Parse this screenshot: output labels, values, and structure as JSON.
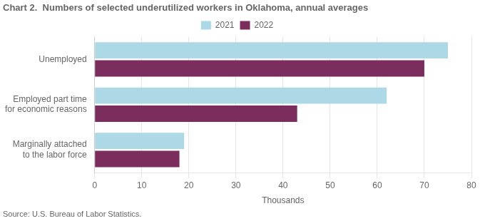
{
  "chart_data": {
    "type": "bar",
    "orientation": "horizontal",
    "title": "Chart 2.  Numbers of selected underutilized workers in Oklahoma, annual averages",
    "annotations": [
      "Source: U.S. Bureau of Labor Statistics."
    ],
    "categories": [
      "Unemployed",
      "Employed part time\nfor economic reasons",
      "Marginally attached\nto the labor force"
    ],
    "series": [
      {
        "name": "2021",
        "color": "#ADD8E6",
        "values": [
          75,
          62,
          19
        ]
      },
      {
        "name": "2022",
        "color": "#7B2D5E",
        "values": [
          70,
          43,
          18
        ]
      }
    ],
    "xlabel": "Thousands",
    "xlim": [
      0,
      80
    ],
    "xticks": [
      0,
      10,
      20,
      30,
      40,
      50,
      60,
      70,
      80
    ],
    "grid": true,
    "legend": "top"
  }
}
